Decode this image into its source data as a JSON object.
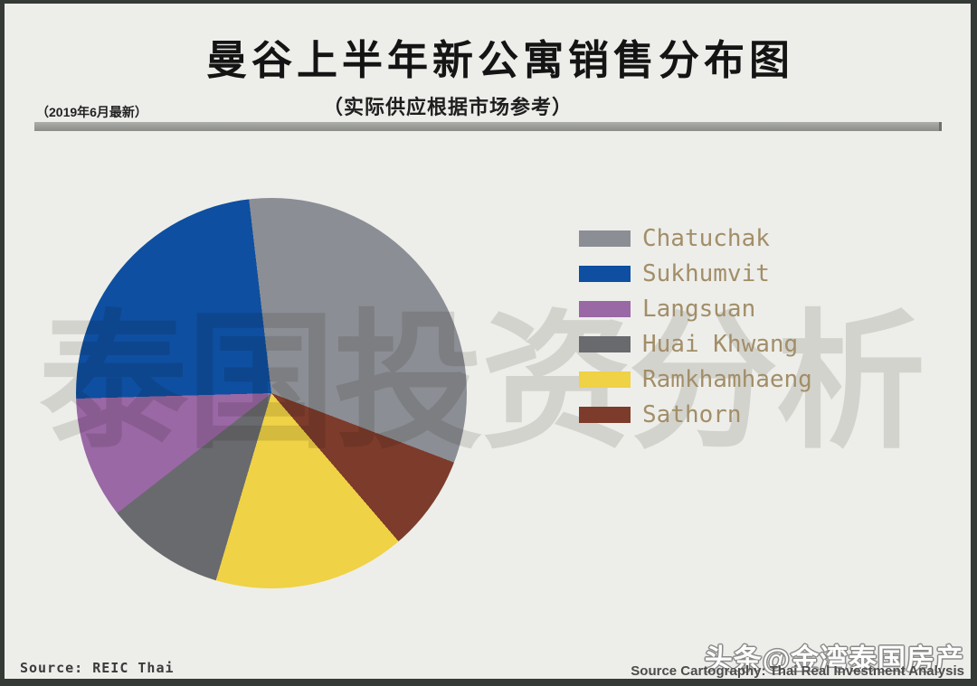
{
  "header": {
    "title": "曼谷上半年新公寓销售分布图",
    "subtitle": "（实际供应根据市场参考）",
    "date_note": "（2019年6月最新）"
  },
  "watermarks": {
    "center_text": "泰国投资分析",
    "toutiao_text": "头条@金湾泰国房产"
  },
  "footer": {
    "source_left": "Source: REIC Thai",
    "source_right": "Source  Cartography: Thai Real Investment Analysis"
  },
  "palette": {
    "background": "#edeeea",
    "frame": "#363a37",
    "divider": "#9a9b97",
    "legend_text": "#a28e68",
    "center_watermark": "#d5d4d2"
  },
  "chart_data": {
    "type": "pie",
    "title": "曼谷上半年新公寓销售分布图",
    "subtitle": "（实际供应根据市场参考）",
    "legend_position": "right",
    "data_labels_shown": false,
    "start_angle_deg": -6.6,
    "clockwise_order": [
      "Chatuchak",
      "Sathorn",
      "Ramkhamhaeng",
      "Huai Khwang",
      "Langsuan",
      "Sukhumvit"
    ],
    "slices": [
      {
        "label": "Chatuchak",
        "color": "#8b8e94",
        "angle_deg": 117.4,
        "percent": 32.6
      },
      {
        "label": "Sukhumvit",
        "color": "#0e4fa1",
        "angle_deg": 85.0,
        "percent": 23.6
      },
      {
        "label": "Langsuan",
        "color": "#9a68a5",
        "angle_deg": 36.3,
        "percent": 10.1
      },
      {
        "label": "Huai Khwang",
        "color": "#696a6e",
        "angle_deg": 35.6,
        "percent": 9.9
      },
      {
        "label": "Ramkhamhaeng",
        "color": "#efd245",
        "angle_deg": 57.1,
        "percent": 15.9
      },
      {
        "label": "Sathorn",
        "color": "#7d3b2b",
        "angle_deg": 28.6,
        "percent": 7.9
      }
    ]
  }
}
